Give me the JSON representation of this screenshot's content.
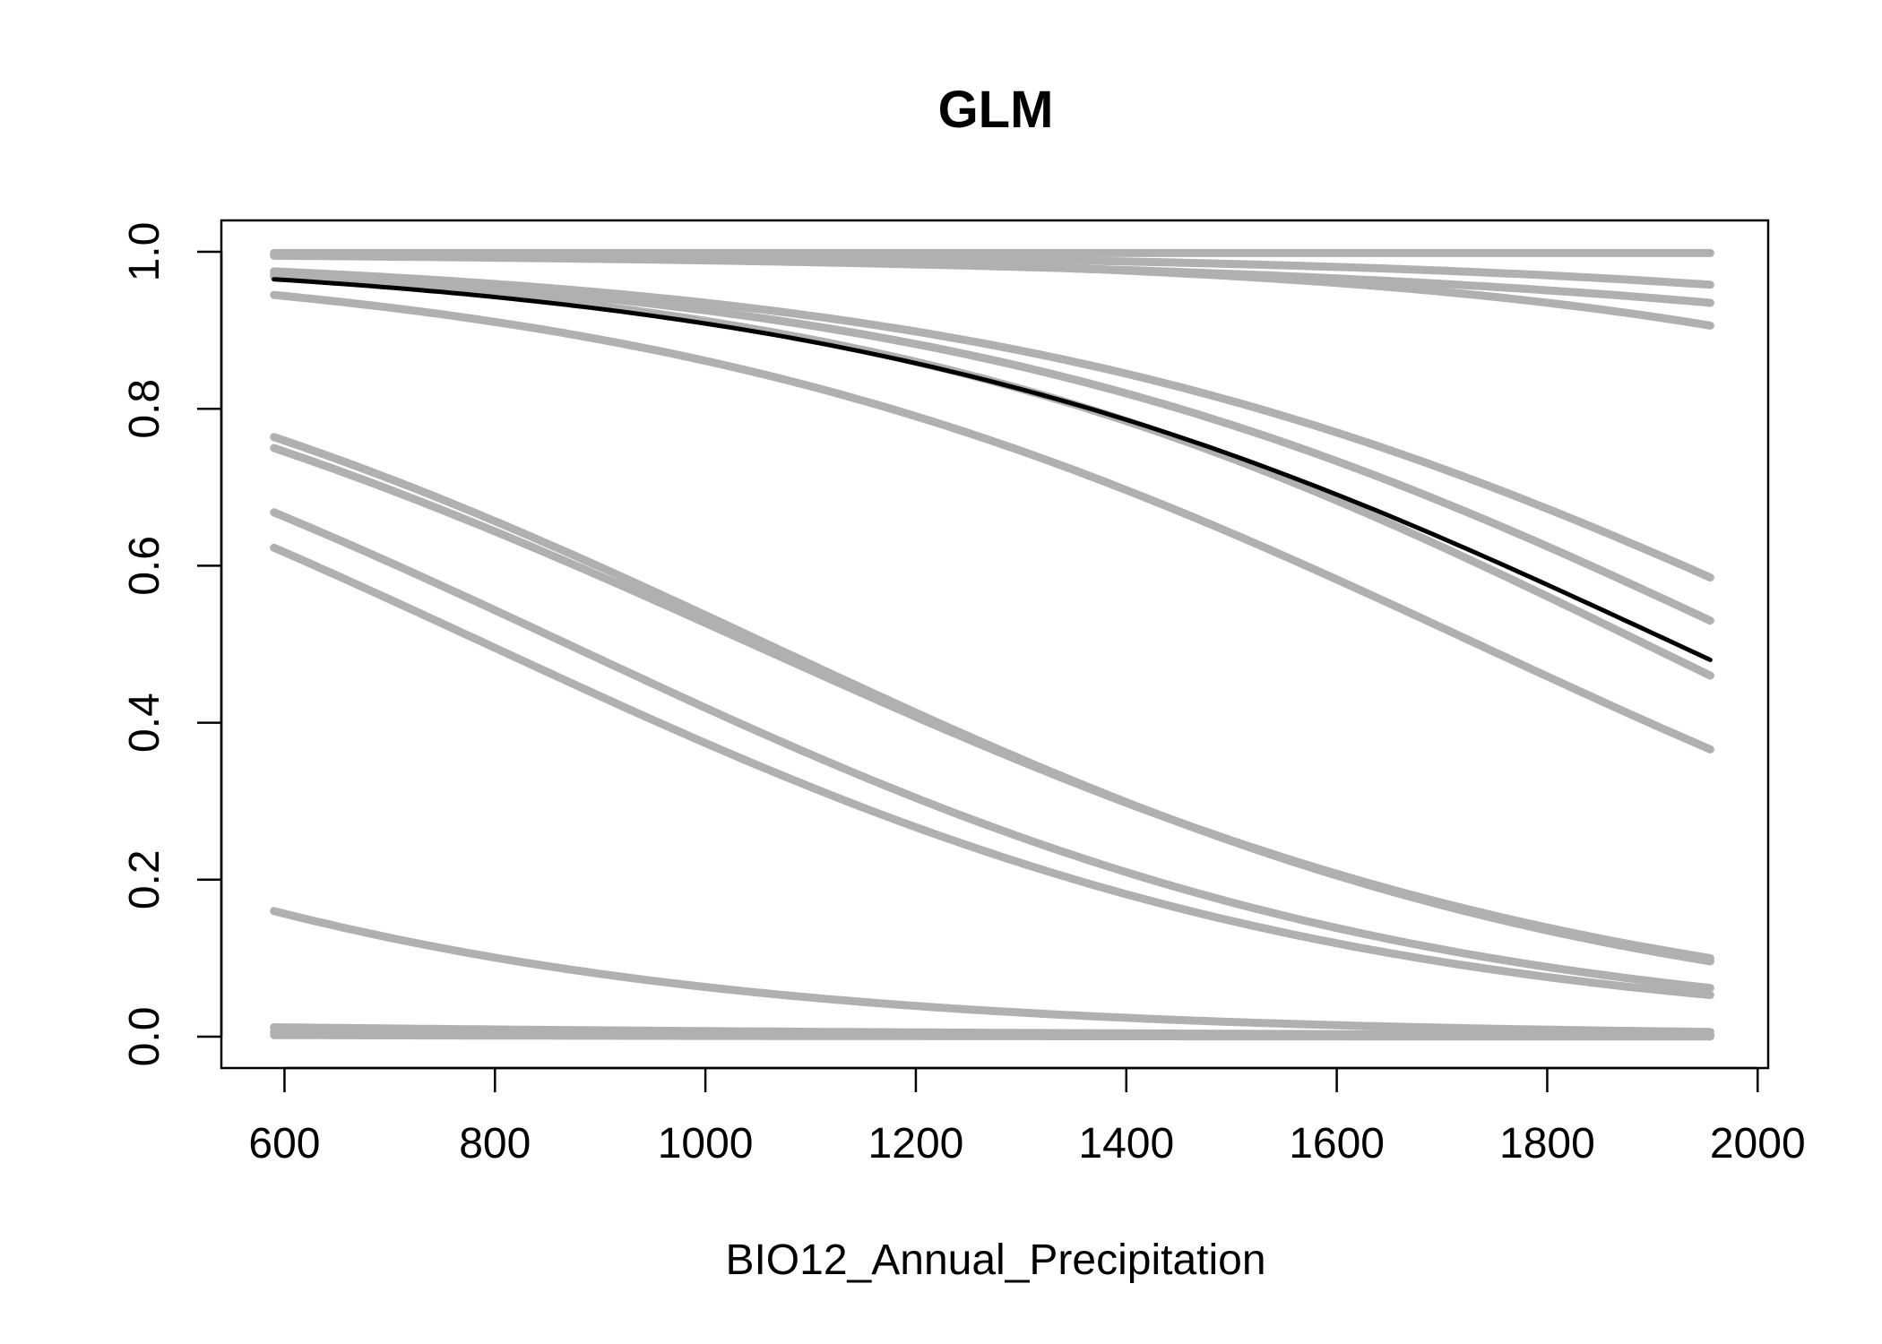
{
  "chart_data": {
    "type": "line",
    "title": "GLM",
    "xlabel": "BIO12_Annual_Precipitation",
    "ylabel": "",
    "xlim": [
      540,
      2010
    ],
    "ylim": [
      -0.04,
      1.04
    ],
    "xticks": [
      600,
      800,
      1000,
      1200,
      1400,
      1600,
      1800,
      2000
    ],
    "yticks": [
      0.0,
      0.2,
      0.4,
      0.6,
      0.8,
      1.0
    ],
    "xtick_labels": [
      "600",
      "800",
      "1000",
      "1200",
      "1400",
      "1600",
      "1800",
      "2000"
    ],
    "ytick_labels": [
      "0.0",
      "0.2",
      "0.4",
      "0.6",
      "0.8",
      "1.0"
    ],
    "grid": false,
    "x_range": [
      590,
      1955
    ],
    "colors": {
      "runs": "#b0b0b0",
      "mean": "#000000"
    },
    "series": [
      {
        "role": "run",
        "start": 0.9985,
        "end": 0.9985
      },
      {
        "role": "run",
        "start": 0.998,
        "end": 0.958
      },
      {
        "role": "run",
        "start": 0.995,
        "end": 0.935
      },
      {
        "role": "run",
        "start": 0.997,
        "end": 0.906
      },
      {
        "role": "run",
        "start": 0.975,
        "end": 0.585
      },
      {
        "role": "run",
        "start": 0.972,
        "end": 0.53
      },
      {
        "role": "run",
        "start": 0.968,
        "end": 0.46
      },
      {
        "role": "run",
        "start": 0.945,
        "end": 0.366
      },
      {
        "role": "run",
        "start": 0.764,
        "end": 0.096
      },
      {
        "role": "run",
        "start": 0.75,
        "end": 0.1
      },
      {
        "role": "run",
        "start": 0.668,
        "end": 0.062
      },
      {
        "role": "run",
        "start": 0.623,
        "end": 0.053
      },
      {
        "role": "run",
        "start": 0.16,
        "end": 0.006
      },
      {
        "role": "run",
        "start": 0.012,
        "end": 0.002
      },
      {
        "role": "run",
        "start": 0.006,
        "end": 0.001
      },
      {
        "role": "run",
        "start": 0.002,
        "end": 0.0002
      },
      {
        "role": "mean",
        "start": 0.965,
        "end": 0.48
      }
    ]
  }
}
